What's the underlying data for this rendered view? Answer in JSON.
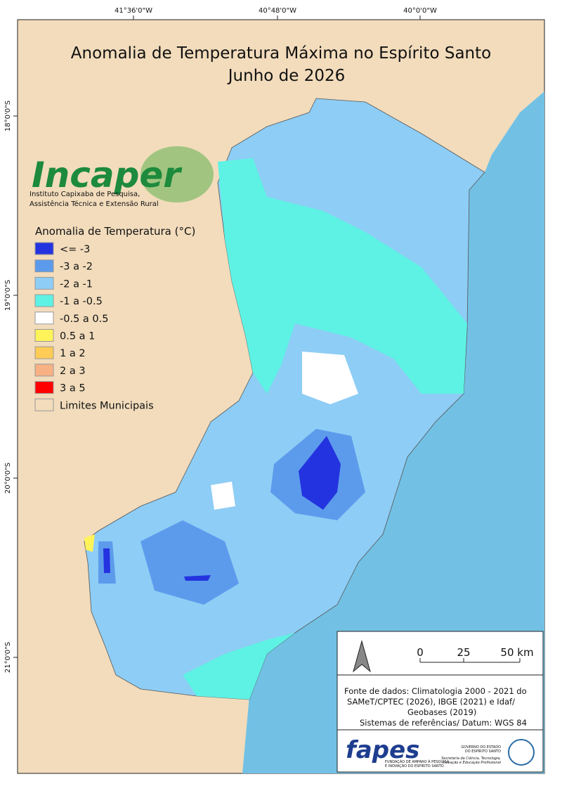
{
  "title": {
    "line1": "Anomalia de Temperatura Máxima no Espírito Santo",
    "line2": "Junho de 2026"
  },
  "graticule": {
    "top": [
      "41°36'0\"W",
      "40°48'0\"W",
      "40°0'0\"W"
    ],
    "left": [
      "18°0'0\"S",
      "19°0'0\"S",
      "20°0'0\"S",
      "21°0'0\"S"
    ]
  },
  "logo": {
    "name": "Incaper",
    "line1": "Instituto Capixaba de Pesquisa,",
    "line2": "Assistência Técnica e Extensão Rural"
  },
  "legend": {
    "title": "Anomalia de Temperatura (°C)",
    "items": [
      {
        "label": "<= -3",
        "color": "#2433e0"
      },
      {
        "label": "-3 a -2",
        "color": "#5c9bec"
      },
      {
        "label": "-2 a -1",
        "color": "#8ecdf5"
      },
      {
        "label": "-1 a -0.5",
        "color": "#5ef2e4"
      },
      {
        "label": "-0.5 a 0.5",
        "color": "#ffffff"
      },
      {
        "label": "0.5 a 1",
        "color": "#fff35a"
      },
      {
        "label": "1 a 2",
        "color": "#ffcc55"
      },
      {
        "label": "2 a 3",
        "color": "#f8b184"
      },
      {
        "label": "3 a 5",
        "color": "#ff0000"
      },
      {
        "label": "Limites Municipais",
        "color": "#f2dcbc"
      }
    ]
  },
  "scale": {
    "labels": [
      "0",
      "25",
      "50 km"
    ]
  },
  "source": [
    "Fonte de dados: Climatologia 2000 - 2021 do",
    "SAMeT/CPTEC (2026), IBGE (2021) e Idaf/",
    "Geobases (2019)",
    "Sistemas de referências/ Datum: WGS 84"
  ],
  "footer": {
    "fapes": "fapes",
    "fapes_sub1": "FUNDAÇÃO DE AMPARO À PESQUISA",
    "fapes_sub2": "E INOVAÇÃO DO ESPÍRITO SANTO",
    "gov1": "GOVERNO DO ESTADO",
    "gov2": "DO ESPÍRITO SANTO",
    "sec1": "Secretaria da Ciência, Tecnologia,",
    "sec2": "Inovação e Educação Profissional"
  }
}
